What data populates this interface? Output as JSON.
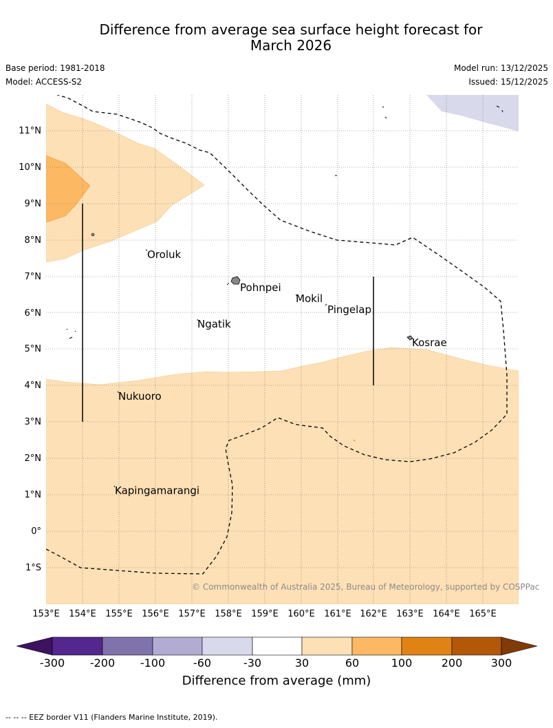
{
  "title_line1": "Difference from average sea surface height forecast for",
  "title_line2": "March 2026",
  "base_period": "Base period: 1981-2018",
  "model": "Model: ACCESS-S2",
  "model_run": "Model run: 13/12/2025",
  "issued": "Issued: 15/12/2025",
  "credit": "© Commonwealth of Australia 2025, Bureau of Meteorology, supported by COSPPac",
  "lat_ticks": [
    "11°N",
    "10°N",
    "9°N",
    "8°N",
    "7°N",
    "6°N",
    "5°N",
    "4°N",
    "3°N",
    "2°N",
    "1°N",
    "0°",
    "1°S"
  ],
  "lon_ticks": [
    "153°E",
    "154°E",
    "155°E",
    "156°E",
    "157°E",
    "158°E",
    "159°E",
    "160°E",
    "161°E",
    "162°E",
    "163°E",
    "164°E",
    "165°E"
  ],
  "places": [
    "Oroluk",
    "Pohnpei",
    "Mokil",
    "Pingelap",
    "Ngatik",
    "Kosrae",
    "Nukuoro",
    "Kapingamarangi"
  ],
  "colorbar": {
    "title": "Difference from average (mm)",
    "tick_labels": [
      "-300",
      "-200",
      "-100",
      "-60",
      "-30",
      "30",
      "60",
      "100",
      "200",
      "300"
    ],
    "colors": [
      "#3c1361",
      "#54278f",
      "#8073ac",
      "#b2abd2",
      "#d8daeb",
      "#ffffff",
      "#fee0b6",
      "#fdb863",
      "#e08214",
      "#b35806",
      "#7f3b08"
    ]
  },
  "footnote": "--  --  -- EEZ border V11 (Flanders Marine Institute, 2019)."
}
